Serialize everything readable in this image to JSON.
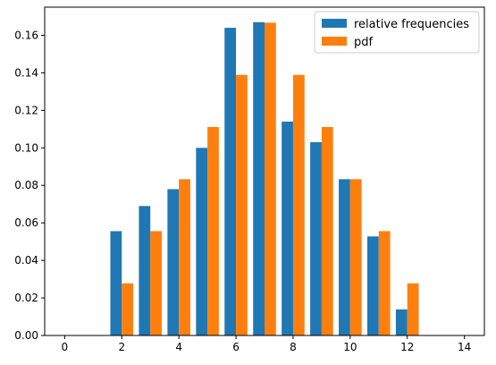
{
  "chart_data": {
    "type": "bar",
    "title": "",
    "xlabel": "",
    "ylabel": "",
    "xlim": [
      -0.7,
      14.7
    ],
    "ylim": [
      0,
      0.175
    ],
    "xticks": [
      0,
      2,
      4,
      6,
      8,
      10,
      12,
      14
    ],
    "yticks": [
      0.0,
      0.02,
      0.04,
      0.06,
      0.08,
      0.1,
      0.12,
      0.14,
      0.16
    ],
    "xtick_labels": [
      "0",
      "2",
      "4",
      "6",
      "8",
      "10",
      "12",
      "14"
    ],
    "ytick_labels": [
      "0.00",
      "0.02",
      "0.04",
      "0.06",
      "0.08",
      "0.10",
      "0.12",
      "0.14",
      "0.16"
    ],
    "x": [
      2,
      3,
      4,
      5,
      6,
      7,
      8,
      9,
      10,
      11,
      12
    ],
    "bar_width": 0.4,
    "grid": false,
    "legend_position": "top-right",
    "series": [
      {
        "name": "relative frequencies",
        "color": "#1f77b4",
        "offset": -0.2,
        "values": [
          0.0556,
          0.069,
          0.078,
          0.1,
          0.164,
          0.167,
          0.114,
          0.103,
          0.0833,
          0.0528,
          0.0139
        ]
      },
      {
        "name": "pdf",
        "color": "#ff7f0e",
        "offset": 0.2,
        "values": [
          0.0278,
          0.0556,
          0.0833,
          0.1111,
          0.1389,
          0.1667,
          0.1389,
          0.1111,
          0.0833,
          0.0556,
          0.0278
        ]
      }
    ]
  }
}
